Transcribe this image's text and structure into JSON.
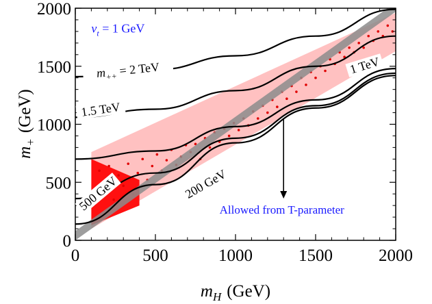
{
  "chart_data": {
    "type": "scatter",
    "xlabel_main": "m",
    "xlabel_sub": "H",
    "xlabel_unit": "(GeV)",
    "ylabel_main": "m",
    "ylabel_sub": "+",
    "ylabel_unit": "(GeV)",
    "xlim": [
      0,
      2000
    ],
    "ylim": [
      0,
      2000
    ],
    "x_ticks": [
      0,
      500,
      1000,
      1500,
      2000
    ],
    "y_ticks": [
      0,
      500,
      1000,
      1500,
      2000
    ],
    "x_tick_labels": [
      "0",
      "500",
      "1000",
      "1500",
      "2000"
    ],
    "y_tick_labels": [
      "0",
      "500",
      "1000",
      "1500",
      "2000"
    ],
    "vt_label_main": "v",
    "vt_label_sub": "t",
    "vt_label_rest": " = 1 GeV",
    "allowed_label": "Allowed from T-parameter",
    "allowed_arrow": {
      "x": 1300,
      "y_from": 1050,
      "y_to": 360
    },
    "band": {
      "lower_x0": 0,
      "lower_y0": 0,
      "lower_slope": 0.985,
      "upper_x0": 0,
      "upper_y0": 80,
      "upper_slope": 0.985
    },
    "scatter_region": {
      "x_min": 100,
      "lower_line": [
        [
          100,
          100
        ],
        [
          2000,
          1630
        ]
      ],
      "upper_line": [
        [
          100,
          760
        ],
        [
          2000,
          1960
        ]
      ],
      "wedge": [
        [
          100,
          700
        ],
        [
          400,
          520
        ],
        [
          400,
          300
        ],
        [
          100,
          130
        ]
      ],
      "points": [
        [
          120,
          310
        ],
        [
          150,
          600
        ],
        [
          180,
          420
        ],
        [
          210,
          640
        ],
        [
          240,
          350
        ],
        [
          270,
          560
        ],
        [
          300,
          470
        ],
        [
          330,
          660
        ],
        [
          360,
          400
        ],
        [
          390,
          580
        ],
        [
          420,
          700
        ],
        [
          450,
          520
        ],
        [
          480,
          640
        ],
        [
          510,
          740
        ],
        [
          540,
          600
        ],
        [
          570,
          690
        ],
        [
          600,
          780
        ],
        [
          630,
          650
        ],
        [
          660,
          720
        ],
        [
          690,
          820
        ],
        [
          720,
          760
        ],
        [
          750,
          830
        ],
        [
          780,
          700
        ],
        [
          810,
          880
        ],
        [
          840,
          800
        ],
        [
          870,
          930
        ],
        [
          900,
          850
        ],
        [
          930,
          960
        ],
        [
          960,
          900
        ],
        [
          990,
          1010
        ],
        [
          1020,
          950
        ],
        [
          1050,
          1050
        ],
        [
          1080,
          990
        ],
        [
          1110,
          1110
        ],
        [
          1140,
          1050
        ],
        [
          1170,
          1160
        ],
        [
          1200,
          1100
        ],
        [
          1230,
          1210
        ],
        [
          1260,
          1150
        ],
        [
          1290,
          1280
        ],
        [
          1320,
          1220
        ],
        [
          1350,
          1330
        ],
        [
          1380,
          1280
        ],
        [
          1410,
          1400
        ],
        [
          1440,
          1340
        ],
        [
          1470,
          1450
        ],
        [
          1500,
          1400
        ],
        [
          1530,
          1500
        ],
        [
          1560,
          1460
        ],
        [
          1590,
          1560
        ],
        [
          1620,
          1520
        ],
        [
          1650,
          1620
        ],
        [
          1680,
          1580
        ],
        [
          1710,
          1660
        ],
        [
          1740,
          1620
        ],
        [
          1770,
          1700
        ],
        [
          1800,
          1660
        ],
        [
          1830,
          1760
        ],
        [
          1860,
          1720
        ],
        [
          1890,
          1800
        ],
        [
          1920,
          1760
        ],
        [
          1950,
          1850
        ],
        [
          1980,
          1800
        ]
      ]
    },
    "series": [
      {
        "name": "m++ = 2 TeV",
        "x": [
          0,
          500,
          1000,
          1500,
          2000
        ],
        "y": [
          1410,
          1470,
          1590,
          1760,
          1990
        ]
      },
      {
        "name": "1.5 TeV",
        "x": [
          0,
          500,
          1000,
          1500,
          2000
        ],
        "y": [
          1060,
          1130,
          1290,
          1500,
          1760
        ]
      },
      {
        "name": "1 TeV",
        "x": [
          0,
          500,
          1000,
          1500,
          2000
        ],
        "y": [
          700,
          770,
          980,
          1210,
          1480
        ]
      },
      {
        "name": "500 GeV",
        "x": [
          0,
          500,
          1000,
          1500,
          2000
        ],
        "y": [
          360,
          580,
          880,
          1160,
          1440
        ]
      },
      {
        "name": "200 GeV",
        "x": [
          0,
          500,
          1000,
          1500,
          2000
        ],
        "y": [
          140,
          480,
          840,
          1140,
          1420
        ]
      }
    ],
    "curve_labels": [
      {
        "text_main": "m",
        "text_sub": "++",
        "text_rest": " = 2 TeV",
        "x": 330,
        "y": 1450
      },
      {
        "text_main": "1.5 TeV",
        "x": 160,
        "y": 1110
      },
      {
        "text_main": "1 TeV",
        "x": 1810,
        "y": 1490
      },
      {
        "text_main": "500 GeV",
        "x": 150,
        "y": 390
      },
      {
        "text_main": "200 GeV",
        "x": 820,
        "y": 470
      }
    ]
  }
}
